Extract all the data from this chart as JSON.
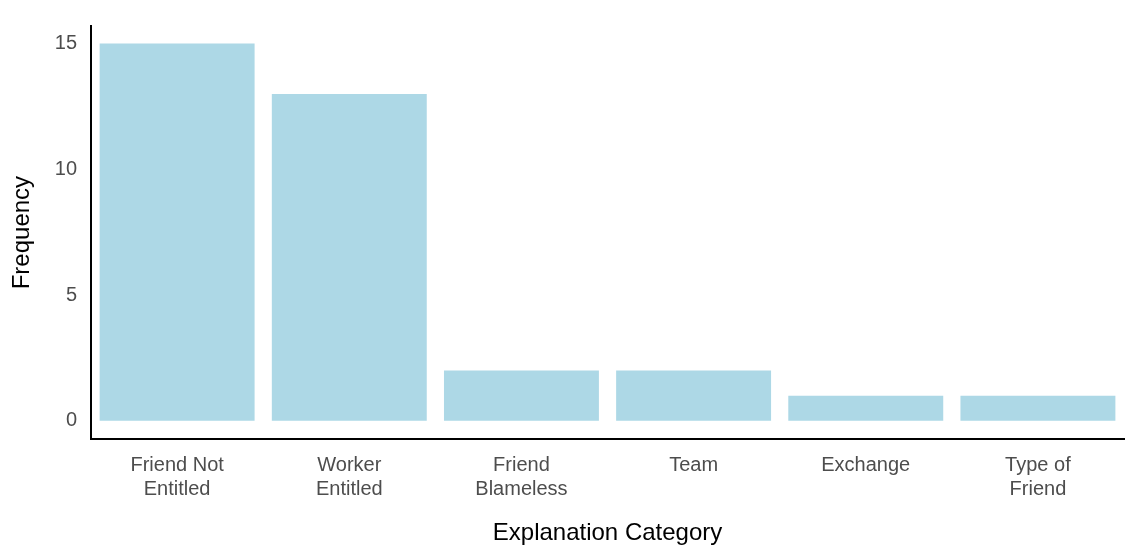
{
  "chart_data": {
    "type": "bar",
    "xlabel": "Explanation Category",
    "ylabel": "Frequency",
    "categories": [
      "Friend Not Entitled",
      "Worker Entitled",
      "Friend Blameless",
      "Team",
      "Exchange",
      "Type of Friend"
    ],
    "values": [
      15,
      13,
      2,
      2,
      1,
      1
    ],
    "color": "#add8e6",
    "ylim": [
      -0.73,
      15.7
    ],
    "yticks": [
      0,
      5,
      10,
      15
    ],
    "grid": false,
    "legend": false
  }
}
